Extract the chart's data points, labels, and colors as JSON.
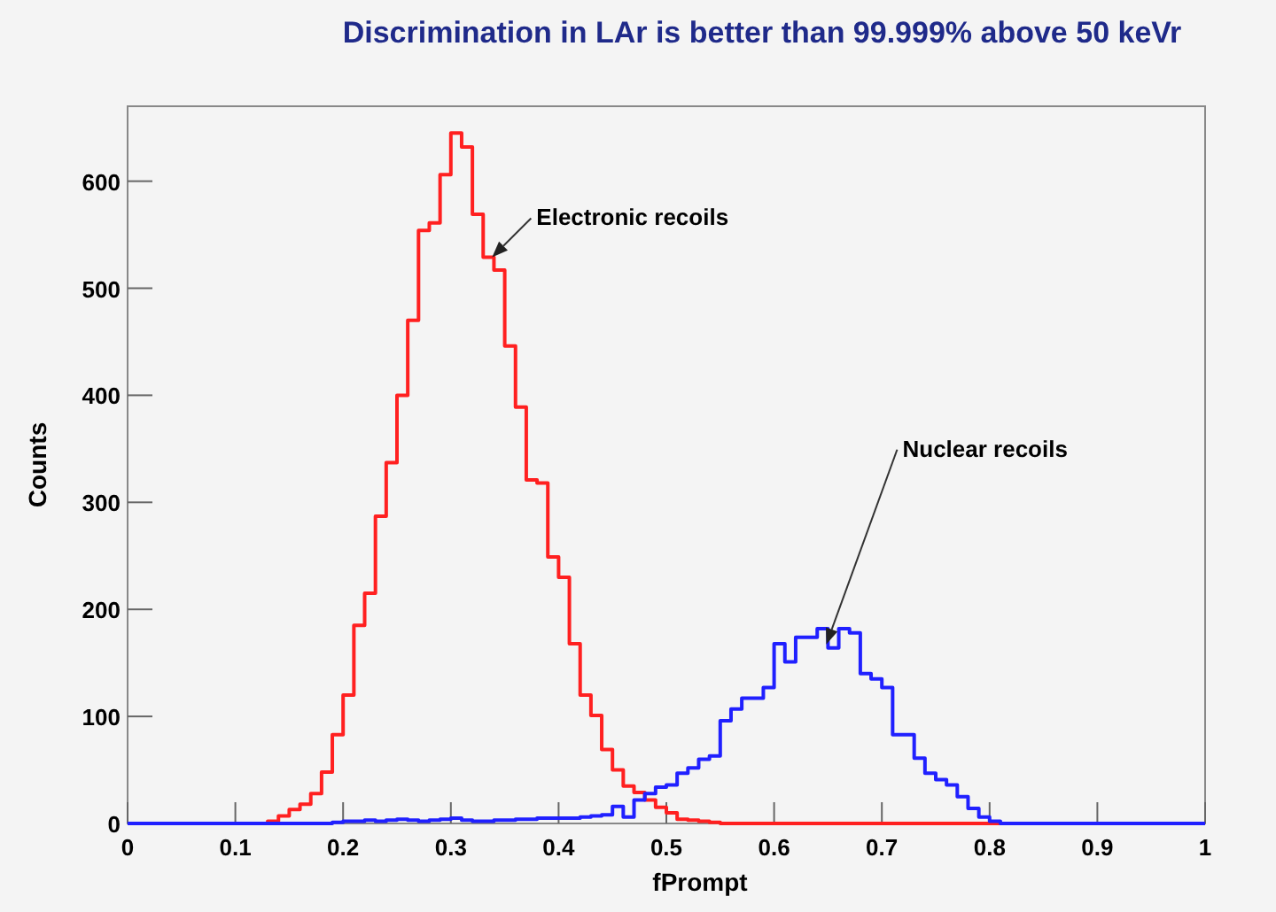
{
  "chart_data": {
    "type": "histogram",
    "title": "Discrimination in LAr is better than 99.999% above 50 keVr",
    "xlabel": "fPrompt",
    "ylabel": "Counts",
    "bins": [
      0,
      0.01,
      0.02,
      0.03,
      0.04,
      0.05,
      0.06,
      0.07,
      0.08,
      0.09,
      0.1,
      0.11,
      0.12,
      0.13,
      0.14,
      0.15,
      0.16,
      0.17,
      0.18,
      0.19,
      0.2,
      0.21,
      0.22,
      0.23,
      0.24,
      0.25,
      0.26,
      0.27,
      0.28,
      0.29,
      0.3,
      0.31,
      0.32,
      0.33,
      0.34,
      0.35,
      0.36,
      0.37,
      0.38,
      0.39,
      0.4,
      0.41,
      0.42,
      0.43,
      0.44,
      0.45,
      0.46,
      0.47,
      0.48,
      0.49,
      0.5,
      0.51,
      0.52,
      0.53,
      0.54,
      0.55,
      0.56,
      0.57,
      0.58,
      0.59,
      0.6,
      0.61,
      0.62,
      0.63,
      0.64,
      0.65,
      0.66,
      0.67,
      0.68,
      0.69,
      0.7,
      0.71,
      0.72,
      0.73,
      0.74,
      0.75,
      0.76,
      0.77,
      0.78,
      0.79,
      0.8,
      0.81,
      0.82,
      0.83,
      0.84,
      0.85,
      0.86,
      0.87,
      0.88,
      0.89,
      0.9,
      0.91,
      0.92,
      0.93,
      0.94,
      0.95,
      0.96,
      0.97,
      0.98,
      0.99,
      1
    ],
    "series": [
      {
        "name": "Electronic recoils",
        "color": "#ff2020",
        "values": [
          0,
          0,
          0,
          0,
          0,
          0,
          0,
          0,
          0,
          0,
          0,
          0,
          0,
          2,
          7,
          13,
          18,
          28,
          48,
          83,
          120,
          185,
          215,
          287,
          337,
          400,
          470,
          554,
          561,
          606,
          645,
          632,
          569,
          529,
          517,
          446,
          389,
          321,
          318,
          249,
          230,
          168,
          120,
          101,
          69,
          50,
          35,
          29,
          22,
          15,
          10,
          4,
          3,
          2,
          1,
          0,
          0,
          0,
          0,
          0,
          0,
          0,
          0,
          0,
          0,
          0,
          0,
          0,
          0,
          0,
          0,
          0,
          0,
          0,
          0,
          0,
          0,
          0,
          0,
          0,
          0,
          0,
          0,
          0,
          0,
          0,
          0,
          0,
          0,
          0,
          0,
          0,
          0,
          0,
          0,
          0,
          0,
          0,
          0,
          0
        ]
      },
      {
        "name": "Nuclear recoils",
        "color": "#2020ff",
        "values": [
          0,
          0,
          0,
          0,
          0,
          0,
          0,
          0,
          0,
          0,
          0,
          0,
          0,
          0,
          0,
          0,
          0,
          0,
          0,
          1,
          2,
          2,
          3,
          2,
          3,
          4,
          3,
          2,
          3,
          4,
          5,
          3,
          2,
          2,
          3,
          3,
          4,
          4,
          5,
          5,
          5,
          5,
          6,
          7,
          8,
          16,
          6,
          22,
          28,
          34,
          36,
          47,
          52,
          60,
          63,
          96,
          107,
          117,
          117,
          127,
          168,
          151,
          174,
          174,
          182,
          164,
          182,
          178,
          140,
          135,
          127,
          83,
          83,
          61,
          47,
          41,
          36,
          25,
          14,
          6,
          2,
          0,
          0,
          0,
          0,
          0,
          0,
          0,
          0,
          0,
          0,
          0,
          0,
          0,
          0,
          0,
          0,
          0,
          0,
          0
        ]
      }
    ],
    "xlim": [
      0,
      1
    ],
    "xticks": [
      0,
      0.1,
      0.2,
      0.3,
      0.4,
      0.5,
      0.6,
      0.7,
      0.8,
      0.9,
      1
    ],
    "ylim": [
      0,
      670
    ],
    "yticks": [
      0,
      100,
      200,
      300,
      400,
      500,
      600
    ],
    "grid": false
  }
}
